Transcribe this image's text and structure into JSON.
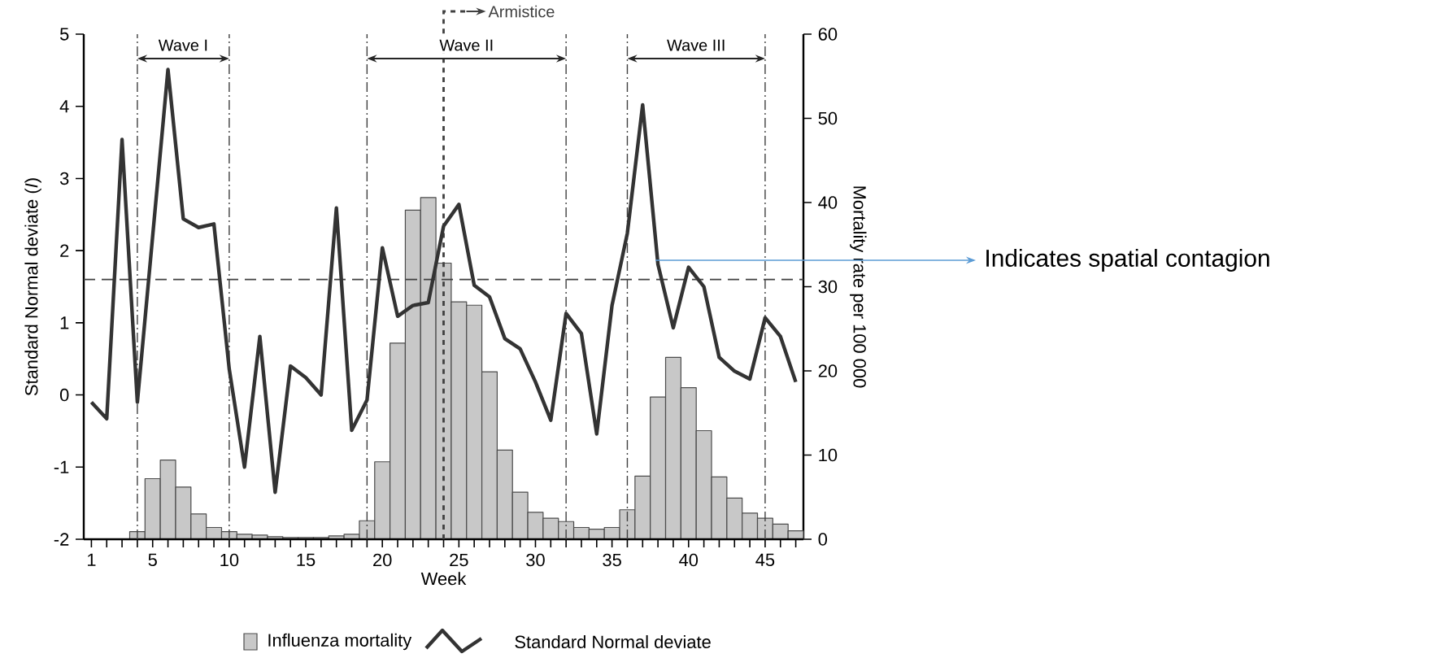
{
  "chart_data": {
    "type": "bar",
    "xlabel": "Week",
    "ylabel": "Standard Normal deviate (*I*)",
    "y2label": "Mortality rate per 100 000",
    "xlim": [
      0.5,
      47.5
    ],
    "xticks": [
      1,
      {
        "value": 2,
        "label": null
      },
      {
        "value": 3,
        "label": null
      },
      {
        "value": 4,
        "label": null
      },
      5,
      {
        "value": 6,
        "label": null
      },
      {
        "value": 7,
        "label": null
      },
      {
        "value": 8,
        "label": null
      },
      {
        "value": 9,
        "label": null
      },
      10,
      {
        "value": 11,
        "label": null
      },
      {
        "value": 12,
        "label": null
      },
      {
        "value": 13,
        "label": null
      },
      {
        "value": 14,
        "label": null
      },
      15,
      {
        "value": 16,
        "label": null
      },
      {
        "value": 17,
        "label": null
      },
      {
        "value": 18,
        "label": null
      },
      {
        "value": 19,
        "label": null
      },
      20,
      {
        "value": 21,
        "label": null
      },
      {
        "value": 22,
        "label": null
      },
      {
        "value": 23,
        "label": null
      },
      {
        "value": 24,
        "label": null
      },
      25,
      {
        "value": 26,
        "label": null
      },
      {
        "value": 27,
        "label": null
      },
      {
        "value": 28,
        "label": null
      },
      {
        "value": 29,
        "label": null
      },
      30,
      {
        "value": 31,
        "label": null
      },
      {
        "value": 32,
        "label": null
      },
      {
        "value": 33,
        "label": null
      },
      {
        "value": 34,
        "label": null
      },
      35,
      {
        "value": 36,
        "label": null
      },
      {
        "value": 37,
        "label": null
      },
      {
        "value": 38,
        "label": null
      },
      {
        "value": 39,
        "label": null
      },
      40,
      {
        "value": 41,
        "label": null
      },
      {
        "value": 42,
        "label": null
      },
      {
        "value": 43,
        "label": null
      },
      {
        "value": 44,
        "label": null
      },
      45,
      {
        "value": 46,
        "label": null
      },
      {
        "value": 47,
        "label": null
      }
    ],
    "ylim": [
      -2,
      5
    ],
    "yticks": [
      -2,
      -1,
      0,
      1,
      2,
      3,
      4,
      5
    ],
    "y2lim": [
      0,
      60
    ],
    "y2ticks": [
      0,
      10,
      20,
      30,
      40,
      50,
      60
    ],
    "series": [
      {
        "name": "Influenza mortality",
        "axis": "y2",
        "color": "#c8c8c8",
        "x": [
          4,
          5,
          6,
          7,
          8,
          9,
          10,
          11,
          12,
          13,
          14,
          15,
          16,
          17,
          18,
          19,
          20,
          21,
          22,
          23,
          24,
          25,
          26,
          27,
          28,
          29,
          30,
          31,
          32,
          33,
          34,
          35,
          36,
          37,
          38,
          39,
          40,
          41,
          42,
          43,
          44,
          45,
          46,
          47
        ],
        "values": [
          0.9,
          7.2,
          9.4,
          6.2,
          3.0,
          1.4,
          0.9,
          0.6,
          0.5,
          0.3,
          0.2,
          0.2,
          0.2,
          0.4,
          0.6,
          2.2,
          9.2,
          23.3,
          39.1,
          40.6,
          32.8,
          28.2,
          27.8,
          19.9,
          10.6,
          5.6,
          3.2,
          2.5,
          2.1,
          1.4,
          1.2,
          1.4,
          3.5,
          7.5,
          16.9,
          21.6,
          18.0,
          12.9,
          7.4,
          4.9,
          3.1,
          2.5,
          1.8,
          1.0
        ]
      },
      {
        "name": "Standard Normal deviate",
        "type": "line",
        "color": "#333333",
        "x": [
          1,
          2,
          3,
          4,
          5,
          6,
          7,
          8,
          9,
          10,
          11,
          12,
          13,
          14,
          15,
          16,
          17,
          18,
          19,
          20,
          21,
          22,
          23,
          24,
          25,
          26,
          27,
          28,
          29,
          30,
          31,
          32,
          33,
          34,
          35,
          36,
          37,
          38,
          39,
          40,
          41,
          42,
          43,
          44,
          45,
          46,
          47
        ],
        "values": [
          -0.1,
          -0.33,
          3.54,
          -0.1,
          2.2,
          4.51,
          2.44,
          2.32,
          2.37,
          0.36,
          -1.0,
          0.81,
          -1.35,
          0.4,
          0.24,
          0.0,
          2.59,
          -0.49,
          -0.07,
          2.04,
          1.09,
          1.24,
          1.28,
          2.34,
          2.64,
          1.52,
          1.36,
          0.78,
          0.64,
          0.18,
          -0.35,
          1.13,
          0.85,
          -0.54,
          1.24,
          2.24,
          4.02,
          1.81,
          0.93,
          1.77,
          1.5,
          0.52,
          0.33,
          0.22,
          1.07,
          0.81,
          0.18
        ]
      }
    ],
    "ref_lines": [
      {
        "axis": "y",
        "value": 1.6,
        "line_style": "dashed"
      },
      {
        "axis": "x",
        "value": 24,
        "label": "Armistice",
        "line_style": "dashed"
      },
      {
        "axis": "x",
        "value": 4,
        "line_style": "dashed"
      },
      {
        "axis": "x",
        "value": 10,
        "line_style": "dashed"
      },
      {
        "axis": "x",
        "value": 19,
        "line_style": "dashed"
      },
      {
        "axis": "x",
        "value": 32,
        "line_style": "dashed"
      },
      {
        "axis": "x",
        "value": 36,
        "line_style": "dashed"
      },
      {
        "axis": "x",
        "value": 45,
        "line_style": "dashed"
      }
    ],
    "annotations": [
      "Wave I",
      "Wave II",
      "Wave III",
      "Indicates spatial contagion"
    ],
    "legend": "bottom"
  }
}
